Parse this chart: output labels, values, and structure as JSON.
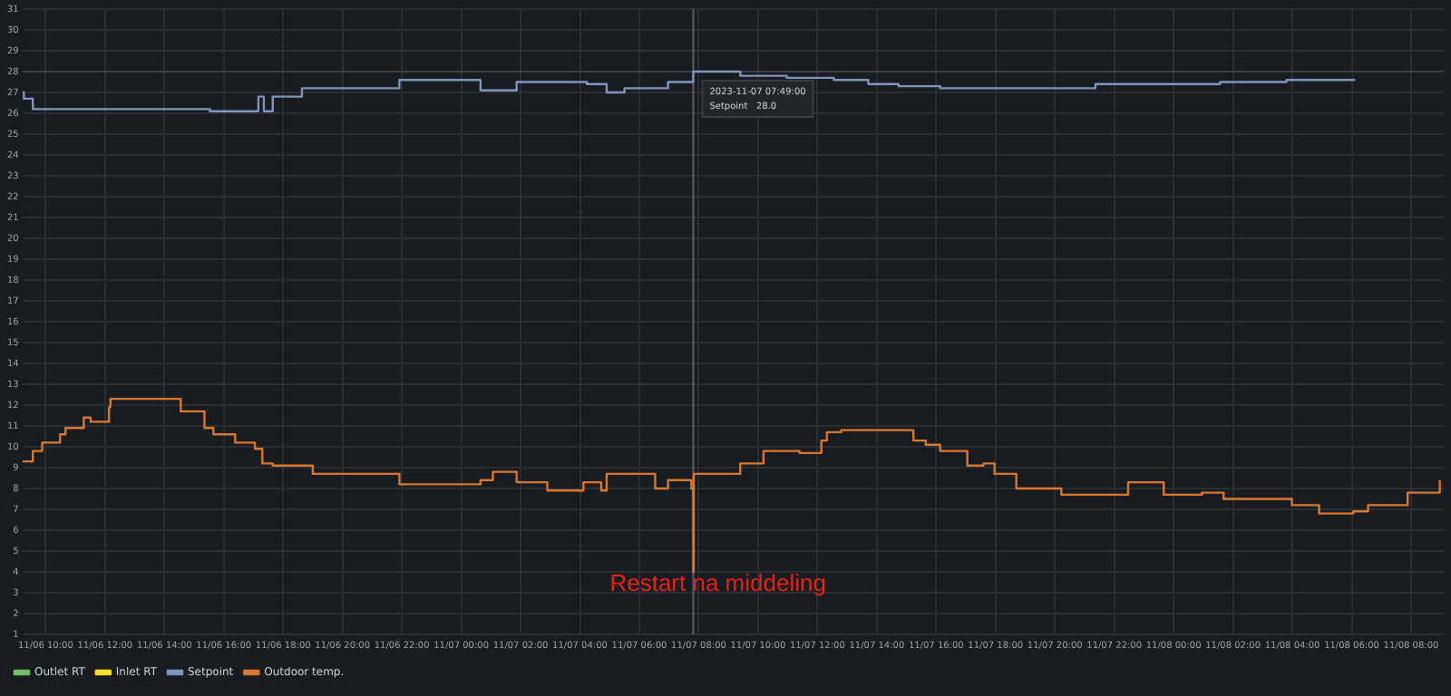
{
  "chart_data": {
    "type": "step",
    "xlim": [
      "2023-11-06T09:13",
      "2023-11-08T09:06"
    ],
    "ylim": [
      1,
      31
    ],
    "yticks": [
      1,
      2,
      3,
      4,
      5,
      6,
      7,
      8,
      9,
      10,
      11,
      12,
      13,
      14,
      15,
      16,
      17,
      18,
      19,
      20,
      21,
      22,
      23,
      24,
      25,
      26,
      27,
      28,
      29,
      30,
      31
    ],
    "xticks": [
      {
        "value": "2023-11-06T10:00",
        "label": "11/06 10:00"
      },
      {
        "value": "2023-11-06T12:00",
        "label": "11/06 12:00"
      },
      {
        "value": "2023-11-06T14:00",
        "label": "11/06 14:00"
      },
      {
        "value": "2023-11-06T16:00",
        "label": "11/06 16:00"
      },
      {
        "value": "2023-11-06T18:00",
        "label": "11/06 18:00"
      },
      {
        "value": "2023-11-06T20:00",
        "label": "11/06 20:00"
      },
      {
        "value": "2023-11-06T22:00",
        "label": "11/06 22:00"
      },
      {
        "value": "2023-11-07T00:00",
        "label": "11/07 00:00"
      },
      {
        "value": "2023-11-07T02:00",
        "label": "11/07 02:00"
      },
      {
        "value": "2023-11-07T04:00",
        "label": "11/07 04:00"
      },
      {
        "value": "2023-11-07T06:00",
        "label": "11/07 06:00"
      },
      {
        "value": "2023-11-07T08:00",
        "label": "11/07 08:00"
      },
      {
        "value": "2023-11-07T10:00",
        "label": "11/07 10:00"
      },
      {
        "value": "2023-11-07T12:00",
        "label": "11/07 12:00"
      },
      {
        "value": "2023-11-07T14:00",
        "label": "11/07 14:00"
      },
      {
        "value": "2023-11-07T16:00",
        "label": "11/07 16:00"
      },
      {
        "value": "2023-11-07T18:00",
        "label": "11/07 18:00"
      },
      {
        "value": "2023-11-07T20:00",
        "label": "11/07 20:00"
      },
      {
        "value": "2023-11-07T22:00",
        "label": "11/07 22:00"
      },
      {
        "value": "2023-11-08T00:00",
        "label": "11/08 00:00"
      },
      {
        "value": "2023-11-08T02:00",
        "label": "11/08 02:00"
      },
      {
        "value": "2023-11-08T04:00",
        "label": "11/08 04:00"
      },
      {
        "value": "2023-11-08T06:00",
        "label": "11/08 06:00"
      },
      {
        "value": "2023-11-08T08:00",
        "label": "11/08 08:00"
      }
    ],
    "grid": true,
    "legend": "bottom left",
    "series": [
      {
        "name": "Outlet RT",
        "color": "#73bf69"
      },
      {
        "name": "Inlet RT",
        "color": "#fade2a"
      },
      {
        "name": "Setpoint",
        "color": "#7f95bd",
        "x": [
          "2023-11-06T09:13",
          "2023-11-06T09:16",
          "2023-11-06T09:34",
          "2023-11-06T15:32",
          "2023-11-06T17:10",
          "2023-11-06T17:21",
          "2023-11-06T17:39",
          "2023-11-06T18:38",
          "2023-11-06T21:55",
          "2023-11-07T00:39",
          "2023-11-07T01:52",
          "2023-11-07T04:14",
          "2023-11-07T04:54",
          "2023-11-07T05:30",
          "2023-11-07T06:58",
          "2023-11-07T07:49",
          "2023-11-07T09:24",
          "2023-11-07T10:58",
          "2023-11-07T12:33",
          "2023-11-07T13:43",
          "2023-11-07T14:44",
          "2023-11-07T16:08",
          "2023-11-07T21:22",
          "2023-11-08T01:34",
          "2023-11-08T03:48",
          "2023-11-08T06:07"
        ],
        "values": [
          27.0,
          26.7,
          26.2,
          26.1,
          26.8,
          26.1,
          26.8,
          27.2,
          27.6,
          27.1,
          27.5,
          27.4,
          27.0,
          27.2,
          27.5,
          28.0,
          27.8,
          27.7,
          27.6,
          27.4,
          27.3,
          27.2,
          27.4,
          27.5,
          27.6,
          27.6
        ]
      },
      {
        "name": "Outdoor temp.",
        "color": "#d9782e",
        "x": [
          "2023-11-06T09:13",
          "2023-11-06T09:34",
          "2023-11-06T09:53",
          "2023-11-06T10:29",
          "2023-11-06T10:40",
          "2023-11-06T11:17",
          "2023-11-06T11:31",
          "2023-11-06T12:08",
          "2023-11-06T12:11",
          "2023-11-06T14:33",
          "2023-11-06T15:21",
          "2023-11-06T15:39",
          "2023-11-06T16:23",
          "2023-11-06T17:03",
          "2023-11-06T17:18",
          "2023-11-06T17:39",
          "2023-11-06T19:00",
          "2023-11-06T21:55",
          "2023-11-07T00:39",
          "2023-11-07T01:04",
          "2023-11-07T01:52",
          "2023-11-07T02:54",
          "2023-11-07T04:07",
          "2023-11-07T04:43",
          "2023-11-07T04:54",
          "2023-11-07T06:32",
          "2023-11-07T06:58",
          "2023-11-07T07:45",
          "2023-11-07T07:49",
          "2023-11-07T07:50",
          "2023-11-07T08:58",
          "2023-11-07T09:24",
          "2023-11-07T10:11",
          "2023-11-07T11:24",
          "2023-11-07T12:08",
          "2023-11-07T12:19",
          "2023-11-07T12:48",
          "2023-11-07T15:14",
          "2023-11-07T15:39",
          "2023-11-07T16:08",
          "2023-11-07T17:03",
          "2023-11-07T17:36",
          "2023-11-07T17:58",
          "2023-11-07T18:42",
          "2023-11-07T20:13",
          "2023-11-07T22:28",
          "2023-11-07T23:40",
          "2023-11-08T00:57",
          "2023-11-08T01:41",
          "2023-11-08T03:59",
          "2023-11-08T04:54",
          "2023-11-08T06:03",
          "2023-11-08T06:33",
          "2023-11-08T07:53",
          "2023-11-08T08:58"
        ],
        "values": [
          9.3,
          9.8,
          10.2,
          10.6,
          10.9,
          11.4,
          11.2,
          11.9,
          12.3,
          11.7,
          10.9,
          10.6,
          10.2,
          9.9,
          9.2,
          9.1,
          8.7,
          8.2,
          8.4,
          8.8,
          8.3,
          7.9,
          8.3,
          7.9,
          8.7,
          8.0,
          8.4,
          8.0,
          4.0,
          8.7,
          8.7,
          9.2,
          9.8,
          9.7,
          10.3,
          10.7,
          10.8,
          10.3,
          10.1,
          9.8,
          9.1,
          9.2,
          8.7,
          8.0,
          7.7,
          8.3,
          7.7,
          7.8,
          7.5,
          7.2,
          6.8,
          6.9,
          7.2,
          7.8,
          8.4
        ]
      }
    ],
    "ref_lines": [
      {
        "axis": "x",
        "value": "2023-11-07T07:49",
        "color": "#5a5e66"
      },
      {
        "axis": "y",
        "value": 28,
        "color": "#3a3e46"
      }
    ],
    "annotations": [
      {
        "text": "Restart na middeling",
        "x": "2023-11-07T07:49",
        "y": 3.4
      },
      "2023-11-07 07:49:00",
      "Setpoint   28.0"
    ]
  }
}
